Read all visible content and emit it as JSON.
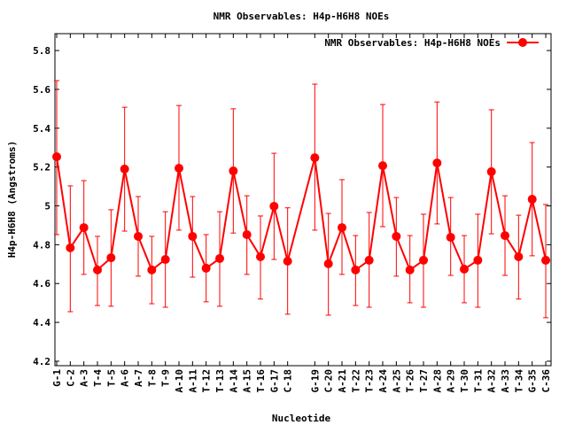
{
  "chart_data": {
    "type": "line",
    "title": "NMR Observables: H4p-H6H8 NOEs",
    "xlabel": "Nucleotide",
    "ylabel": "H4p-H6H8 (Angstroms)",
    "ylim": [
      4.177,
      5.887
    ],
    "xlim": [
      0.87,
      37.39
    ],
    "yticks": [
      "4.2",
      "4.4",
      "4.6",
      "4.8",
      "5",
      "5.2",
      "5.4",
      "5.6",
      "5.8"
    ],
    "grid": false,
    "legend": "top-right",
    "series": [
      {
        "name": "NMR Observables: H4p-H6H8 NOEs",
        "color": "#ff0000",
        "points": [
          {
            "label": "G-1",
            "x": 1,
            "y": 5.253,
            "ylow": 4.852,
            "yhigh": 5.645
          },
          {
            "label": "C-2",
            "x": 2,
            "y": 4.784,
            "ylow": 4.455,
            "yhigh": 5.103
          },
          {
            "label": "A-3",
            "x": 3,
            "y": 4.888,
            "ylow": 4.647,
            "yhigh": 5.13
          },
          {
            "label": "T-4",
            "x": 4,
            "y": 4.67,
            "ylow": 4.487,
            "yhigh": 4.843
          },
          {
            "label": "T-5",
            "x": 5,
            "y": 4.733,
            "ylow": 4.483,
            "yhigh": 4.98
          },
          {
            "label": "A-6",
            "x": 6,
            "y": 5.19,
            "ylow": 4.87,
            "yhigh": 5.508
          },
          {
            "label": "A-7",
            "x": 7,
            "y": 4.843,
            "ylow": 4.638,
            "yhigh": 5.048
          },
          {
            "label": "T-8",
            "x": 8,
            "y": 4.67,
            "ylow": 4.496,
            "yhigh": 4.843
          },
          {
            "label": "T-9",
            "x": 9,
            "y": 4.724,
            "ylow": 4.478,
            "yhigh": 4.97
          },
          {
            "label": "A-10",
            "x": 10,
            "y": 5.194,
            "ylow": 4.875,
            "yhigh": 5.517
          },
          {
            "label": "A-11",
            "x": 11,
            "y": 4.843,
            "ylow": 4.633,
            "yhigh": 5.048
          },
          {
            "label": "T-12",
            "x": 12,
            "y": 4.679,
            "ylow": 4.506,
            "yhigh": 4.852
          },
          {
            "label": "T-13",
            "x": 13,
            "y": 4.729,
            "ylow": 4.483,
            "yhigh": 4.97
          },
          {
            "label": "A-14",
            "x": 14,
            "y": 5.18,
            "ylow": 4.86,
            "yhigh": 5.5
          },
          {
            "label": "A-15",
            "x": 15,
            "y": 4.852,
            "ylow": 4.647,
            "yhigh": 5.052
          },
          {
            "label": "T-16",
            "x": 16,
            "y": 4.738,
            "ylow": 4.52,
            "yhigh": 4.948
          },
          {
            "label": "G-17",
            "x": 17,
            "y": 4.998,
            "ylow": 4.724,
            "yhigh": 5.271
          },
          {
            "label": "C-18",
            "x": 18,
            "y": 4.715,
            "ylow": 4.442,
            "yhigh": 4.99
          },
          {
            "label": "G-19",
            "x": 20,
            "y": 5.248,
            "ylow": 4.875,
            "yhigh": 5.627
          },
          {
            "label": "C-20",
            "x": 21,
            "y": 4.702,
            "ylow": 4.437,
            "yhigh": 4.961
          },
          {
            "label": "A-21",
            "x": 22,
            "y": 4.888,
            "ylow": 4.647,
            "yhigh": 5.135
          },
          {
            "label": "T-22",
            "x": 23,
            "y": 4.67,
            "ylow": 4.487,
            "yhigh": 4.847
          },
          {
            "label": "T-23",
            "x": 24,
            "y": 4.72,
            "ylow": 4.478,
            "yhigh": 4.966
          },
          {
            "label": "A-24",
            "x": 25,
            "y": 5.207,
            "ylow": 4.893,
            "yhigh": 5.522
          },
          {
            "label": "A-25",
            "x": 26,
            "y": 4.843,
            "ylow": 4.638,
            "yhigh": 5.043
          },
          {
            "label": "T-26",
            "x": 27,
            "y": 4.67,
            "ylow": 4.501,
            "yhigh": 4.847
          },
          {
            "label": "T-27",
            "x": 28,
            "y": 4.72,
            "ylow": 4.478,
            "yhigh": 4.957
          },
          {
            "label": "A-28",
            "x": 29,
            "y": 5.221,
            "ylow": 4.907,
            "yhigh": 5.535
          },
          {
            "label": "A-29",
            "x": 30,
            "y": 4.838,
            "ylow": 4.642,
            "yhigh": 5.043
          },
          {
            "label": "T-30",
            "x": 31,
            "y": 4.674,
            "ylow": 4.501,
            "yhigh": 4.847
          },
          {
            "label": "T-31",
            "x": 32,
            "y": 4.72,
            "ylow": 4.478,
            "yhigh": 4.957
          },
          {
            "label": "A-32",
            "x": 33,
            "y": 5.176,
            "ylow": 4.856,
            "yhigh": 5.495
          },
          {
            "label": "A-33",
            "x": 34,
            "y": 4.847,
            "ylow": 4.642,
            "yhigh": 5.052
          },
          {
            "label": "T-34",
            "x": 35,
            "y": 4.738,
            "ylow": 4.52,
            "yhigh": 4.952
          },
          {
            "label": "G-35",
            "x": 36,
            "y": 5.034,
            "ylow": 4.743,
            "yhigh": 5.326
          },
          {
            "label": "C-36",
            "x": 37,
            "y": 4.72,
            "ylow": 4.424,
            "yhigh": 5.007
          }
        ]
      }
    ]
  }
}
